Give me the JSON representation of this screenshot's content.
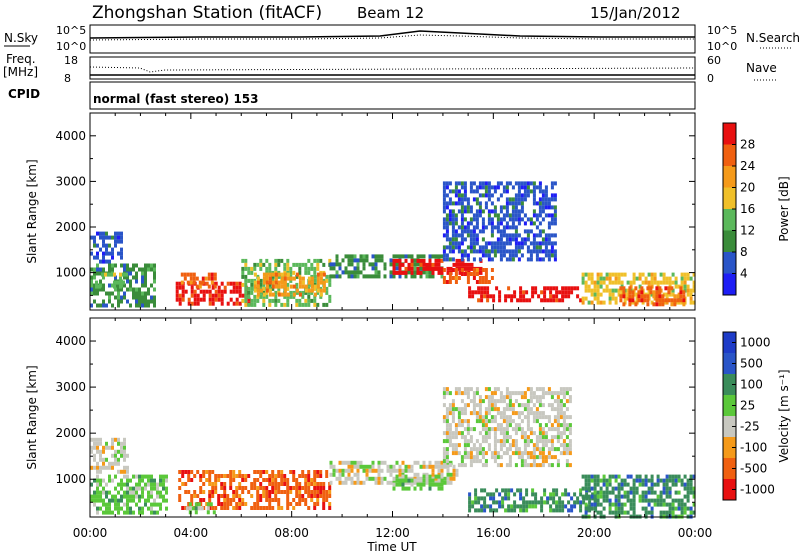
{
  "header": {
    "station": "Zhongshan Station (fitACF)",
    "beam": "Beam 12",
    "date": "15/Jan/2012",
    "mode": "normal (fast stereo) 153"
  },
  "top_panels": {
    "nsky_label": "N.Sky",
    "nsky_ticks": [
      "10^5",
      "10^0"
    ],
    "nsearch_label": "N.Search",
    "nsearch_ticks": [
      "10^5",
      "10^0"
    ],
    "freq_label": "Freq.",
    "freq_unit": "[MHz]",
    "freq_ticks": [
      "18",
      "8"
    ],
    "nave_label": "Nave",
    "nave_ticks": [
      "60",
      "0"
    ],
    "cpid_label": "CPID"
  },
  "colors": {
    "power": [
      "#1e1ef5",
      "#2a55c8",
      "#3a8c3a",
      "#5bb85b",
      "#f0c02a",
      "#f59a1a",
      "#f06010",
      "#e81010"
    ],
    "velocity": [
      "#e81010",
      "#f06010",
      "#f59a1a",
      "#c8c8c0",
      "#5bc83a",
      "#3a8c5a",
      "#2a55c8",
      "#1e3cc8"
    ]
  },
  "chart_data": [
    {
      "type": "heatmap",
      "title": "Power",
      "ylabel": "Slant Range [km]",
      "xlabel": "Time UT",
      "x_ticks": [
        "00:00",
        "04:00",
        "08:00",
        "12:00",
        "16:00",
        "20:00",
        "00:00"
      ],
      "y_ticks": [
        1000,
        2000,
        3000,
        4000
      ],
      "ylim": [
        180,
        4500
      ],
      "colorbar_label": "Power [dB]",
      "colorbar_ticks": [
        4,
        8,
        12,
        16,
        20,
        24,
        28
      ],
      "blobs": [
        {
          "t0": 0.0,
          "t1": 1.2,
          "r0": 1200,
          "r1": 1900,
          "level": 1
        },
        {
          "t0": 0.0,
          "t1": 2.5,
          "r0": 300,
          "r1": 1200,
          "level": 2
        },
        {
          "t0": 0.2,
          "t1": 1.5,
          "r0": 700,
          "r1": 1000,
          "level": 3
        },
        {
          "t0": 3.4,
          "t1": 6.3,
          "r0": 350,
          "r1": 800,
          "level": 7
        },
        {
          "t0": 3.6,
          "t1": 5.0,
          "r0": 700,
          "r1": 1000,
          "level": 6
        },
        {
          "t0": 6.0,
          "t1": 9.5,
          "r0": 300,
          "r1": 1300,
          "level": 3
        },
        {
          "t0": 6.5,
          "t1": 9.3,
          "r0": 500,
          "r1": 1000,
          "level": 5
        },
        {
          "t0": 9.5,
          "t1": 14.0,
          "r0": 900,
          "r1": 1400,
          "level": 2
        },
        {
          "t0": 12.0,
          "t1": 15.5,
          "r0": 1000,
          "r1": 1300,
          "level": 7
        },
        {
          "t0": 14.0,
          "t1": 16.0,
          "r0": 800,
          "r1": 1100,
          "level": 6
        },
        {
          "t0": 15.0,
          "t1": 19.5,
          "r0": 400,
          "r1": 700,
          "level": 7
        },
        {
          "t0": 14.0,
          "t1": 18.5,
          "r0": 1300,
          "r1": 3000,
          "level": 1
        },
        {
          "t0": 19.5,
          "t1": 24.0,
          "r0": 300,
          "r1": 1000,
          "level": 4
        },
        {
          "t0": 21.0,
          "t1": 23.5,
          "r0": 300,
          "r1": 700,
          "level": 6
        }
      ]
    },
    {
      "type": "heatmap",
      "title": "Velocity",
      "ylabel": "Slant Range [km]",
      "xlabel": "Time UT",
      "x_ticks": [
        "00:00",
        "04:00",
        "08:00",
        "12:00",
        "16:00",
        "20:00",
        "00:00"
      ],
      "y_ticks": [
        1000,
        2000,
        3000,
        4000
      ],
      "ylim": [
        180,
        4500
      ],
      "colorbar_label": "Velocity [m s⁻¹]",
      "colorbar_ticks": [
        "1000",
        "500",
        "100",
        "25",
        "-25",
        "-100",
        "-500",
        "-1000"
      ],
      "blobs": [
        {
          "t0": 0.0,
          "t1": 1.5,
          "r0": 1200,
          "r1": 1900,
          "level": 3
        },
        {
          "t0": 0.0,
          "t1": 3.0,
          "r0": 300,
          "r1": 1100,
          "level": 4
        },
        {
          "t0": 3.5,
          "t1": 9.5,
          "r0": 350,
          "r1": 1200,
          "level": 1
        },
        {
          "t0": 3.8,
          "t1": 5.0,
          "r0": 250,
          "r1": 500,
          "level": 4
        },
        {
          "t0": 9.5,
          "t1": 14.5,
          "r0": 900,
          "r1": 1400,
          "level": 3
        },
        {
          "t0": 12.0,
          "t1": 14.0,
          "r0": 800,
          "r1": 1100,
          "level": 4
        },
        {
          "t0": 14.0,
          "t1": 19.0,
          "r0": 1300,
          "r1": 3000,
          "level": 3
        },
        {
          "t0": 15.0,
          "t1": 20.0,
          "r0": 300,
          "r1": 800,
          "level": 5
        },
        {
          "t0": 19.5,
          "t1": 24.0,
          "r0": 200,
          "r1": 1100,
          "level": 5
        }
      ]
    }
  ]
}
